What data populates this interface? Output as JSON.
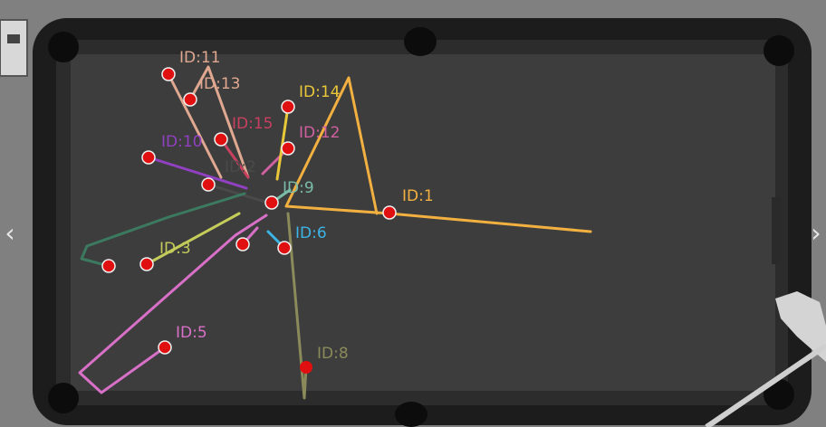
{
  "colors": {
    "floor": "#8a8a8a",
    "rail": "#1c1c1c",
    "felt": "#3a3a3a",
    "ball_red": "#e01010"
  },
  "nav": {
    "prev_icon": "‹",
    "next_icon": "›"
  },
  "tracks": [
    {
      "id_label": "ID:1",
      "color": "#f2b040"
    },
    {
      "id_label": "ID:2",
      "color": "#4a4a4a"
    },
    {
      "id_label": "ID:3",
      "color": "#c4cc5a"
    },
    {
      "id_label": "ID:5",
      "color": "#d870c8"
    },
    {
      "id_label": "ID:6",
      "color": "#3cb4e6"
    },
    {
      "id_label": "ID:8",
      "color": "#8a8a5a"
    },
    {
      "id_label": "ID:9",
      "color": "#7abca8"
    },
    {
      "id_label": "ID:10",
      "color": "#9040c0"
    },
    {
      "id_label": "ID:11",
      "color": "#e0a890"
    },
    {
      "id_label": "ID:12",
      "color": "#d060a0"
    },
    {
      "id_label": "ID:13",
      "color": "#e0a890"
    },
    {
      "id_label": "ID:14",
      "color": "#e8c838"
    },
    {
      "id_label": "ID:15",
      "color": "#c84060"
    },
    {
      "id_label": "",
      "color": "#3c7a60"
    }
  ]
}
